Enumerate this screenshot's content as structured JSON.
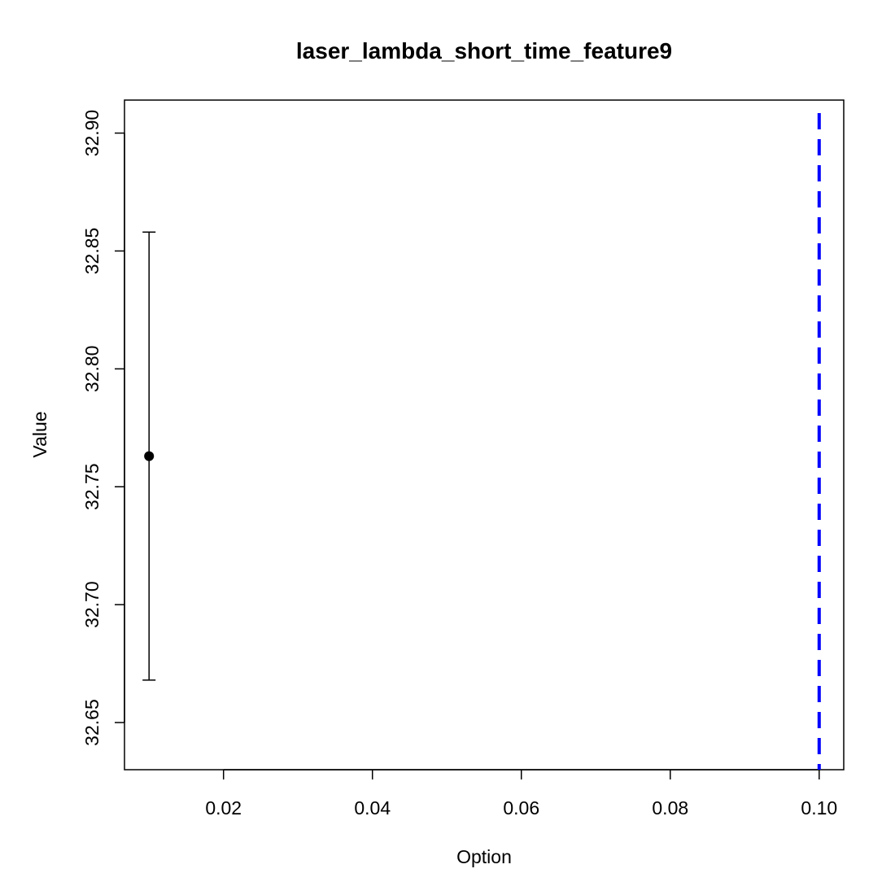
{
  "chart_data": {
    "type": "scatter",
    "title": "laser_lambda_short_time_feature9",
    "xlabel": "Option",
    "ylabel": "Value",
    "xlim": [
      0.0067,
      0.1033
    ],
    "ylim": [
      32.63,
      32.914
    ],
    "x_ticks": [
      0.02,
      0.04,
      0.06,
      0.08,
      0.1
    ],
    "x_tick_labels": [
      "0.02",
      "0.04",
      "0.06",
      "0.08",
      "0.10"
    ],
    "y_ticks": [
      32.65,
      32.7,
      32.75,
      32.8,
      32.85,
      32.9
    ],
    "y_tick_labels": [
      "32.65",
      "32.70",
      "32.75",
      "32.80",
      "32.85",
      "32.90"
    ],
    "points": [
      {
        "x": 0.01,
        "y": 32.763,
        "lower": 32.668,
        "upper": 32.858
      }
    ],
    "reference_line": {
      "orientation": "vertical",
      "x": 0.1,
      "style": "dashed",
      "color": "#0000ff"
    },
    "grid": false,
    "legend": "none"
  }
}
